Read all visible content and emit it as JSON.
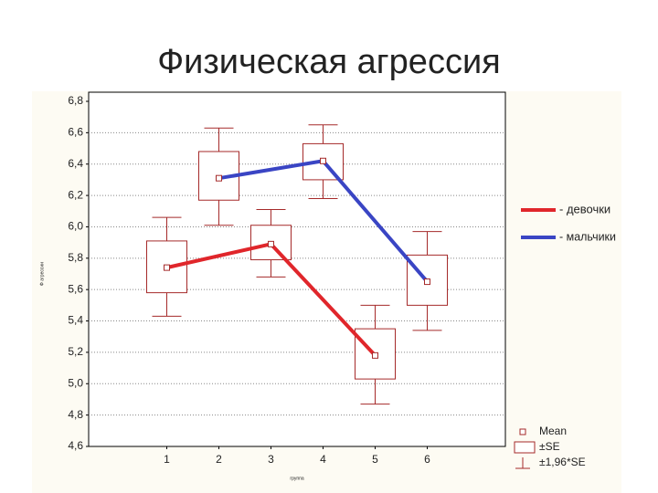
{
  "chart_data": {
    "type": "box-line",
    "title": "Физическая агрессия",
    "x_label": "группа",
    "y_label": "Ф агрессии",
    "xlim": [
      -0.5,
      7.5
    ],
    "xticks": [
      1,
      2,
      3,
      4,
      5,
      6
    ],
    "ylim": [
      4.6,
      6.8
    ],
    "yticks": [
      {
        "value": 4.6,
        "label": "4,6"
      },
      {
        "value": 4.8,
        "label": "4,8"
      },
      {
        "value": 5.0,
        "label": "5,0"
      },
      {
        "value": 5.2,
        "label": "5,2"
      },
      {
        "value": 5.4,
        "label": "5,4"
      },
      {
        "value": 5.6,
        "label": "5,6"
      },
      {
        "value": 5.8,
        "label": "5,8"
      },
      {
        "value": 6.0,
        "label": "6,0"
      },
      {
        "value": 6.2,
        "label": "6,2"
      },
      {
        "value": 6.4,
        "label": "6,4"
      },
      {
        "value": 6.6,
        "label": "6,6"
      },
      {
        "value": 6.8,
        "label": "6,8"
      }
    ],
    "grid": true,
    "box_color": "#a52a2a",
    "series": [
      {
        "name": "- девочки",
        "color": "#e0262b",
        "x": [
          1,
          3,
          5
        ],
        "values": [
          5.74,
          5.89,
          5.18
        ],
        "box": [
          [
            5.58,
            5.91
          ],
          [
            5.79,
            6.01
          ],
          [
            5.03,
            5.35
          ]
        ],
        "whiskers": [
          [
            5.43,
            6.06
          ],
          [
            5.68,
            6.11
          ],
          [
            4.87,
            5.5
          ]
        ]
      },
      {
        "name": "- мальчики",
        "color": "#3a45c4",
        "x": [
          2,
          4,
          6
        ],
        "values": [
          6.31,
          6.42,
          5.65
        ],
        "box": [
          [
            6.17,
            6.48
          ],
          [
            6.3,
            6.53
          ],
          [
            5.5,
            5.82
          ]
        ],
        "whiskers": [
          [
            6.01,
            6.63
          ],
          [
            6.18,
            6.65
          ],
          [
            5.34,
            5.97
          ]
        ]
      }
    ],
    "box_legend": [
      "Mean",
      "±SE",
      "±1,96*SE"
    ]
  }
}
